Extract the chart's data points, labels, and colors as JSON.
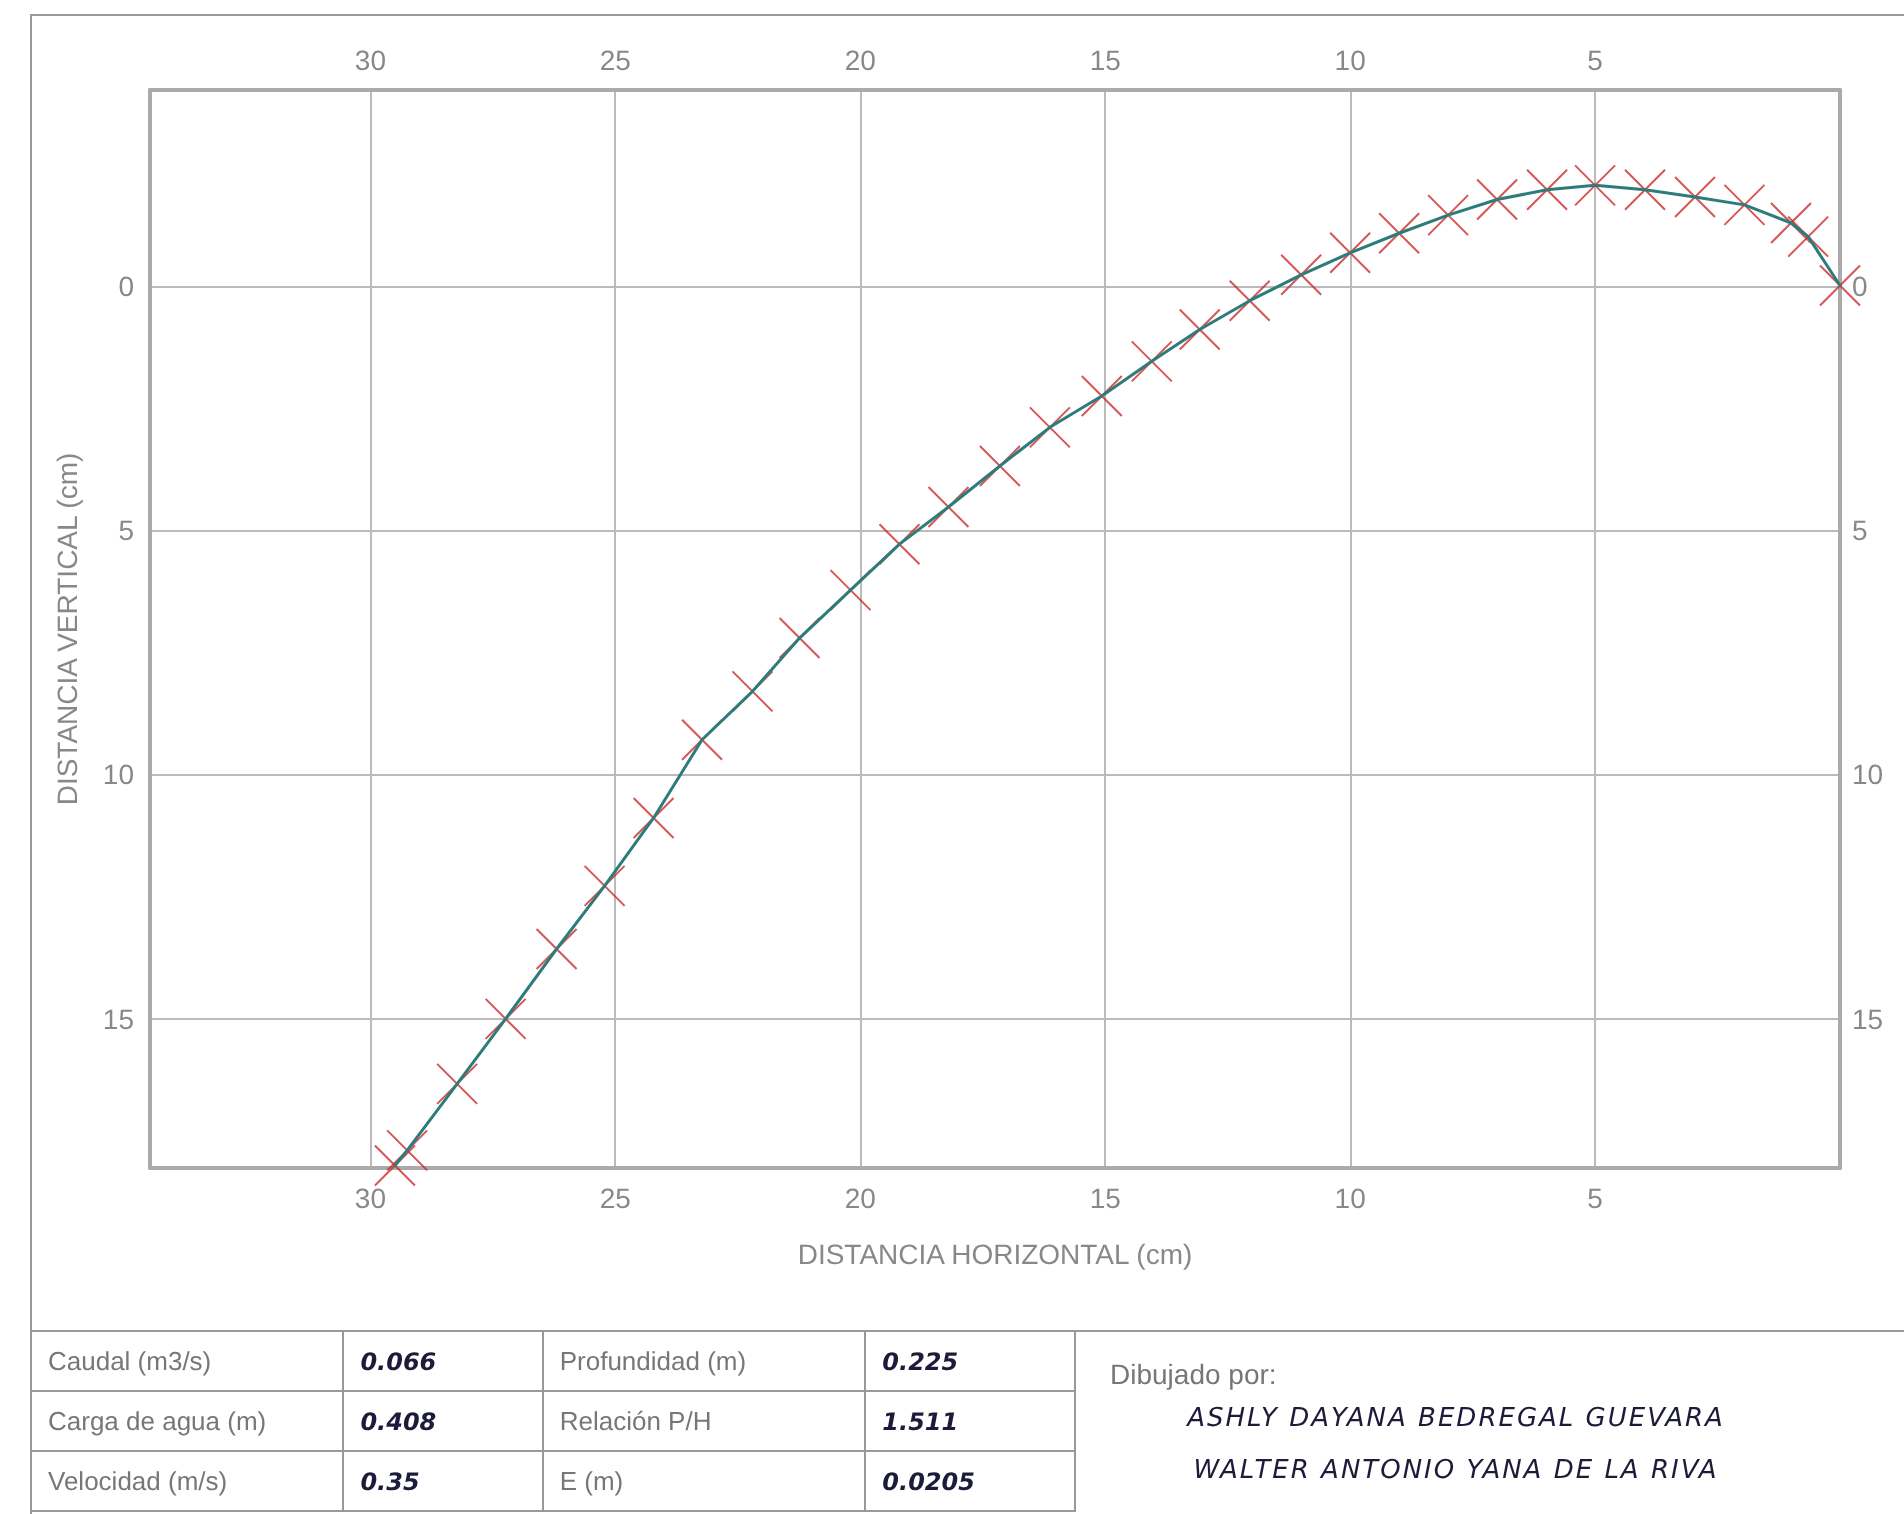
{
  "chart_data": [
    {
      "type": "line",
      "xlabel": "DISTANCIA HORIZONTAL (cm)",
      "ylabel": "DISTANCIA VERTICAL (cm)",
      "xlim": [
        34.5,
        0
      ],
      "xticks": [
        30,
        25,
        20,
        15,
        10,
        5
      ],
      "x2lim": [
        34.5,
        0
      ],
      "x2ticks": [
        30,
        25,
        20,
        15,
        10,
        5
      ],
      "ylim": [
        18.05,
        -4
      ],
      "yticks": [
        0,
        5,
        10,
        15
      ],
      "y2lim": [
        18.05,
        -4
      ],
      "y2ticks": [
        0,
        5,
        10,
        15
      ],
      "grid": true,
      "series": [
        {
          "type": "line",
          "color": "#2e7b7b",
          "marker": "none",
          "x": [
            0,
            0.65,
            1.0,
            1.95,
            2.96,
            3.98,
            5.0,
            5.98,
            7.0,
            8.0,
            9.0,
            10.0,
            11.0,
            12.05,
            13.07,
            14.05,
            15.07,
            16.13,
            17.15,
            18.2,
            19.2,
            20.2,
            21.24,
            22.2,
            23.23,
            24.22,
            25.22,
            26.2,
            27.24,
            28.23,
            29.25,
            29.5
          ],
          "values": [
            0,
            -1.0,
            -1.28,
            -1.65,
            -1.81,
            -1.96,
            -2.05,
            -1.96,
            -1.76,
            -1.44,
            -1.07,
            -0.67,
            -0.22,
            0.31,
            0.9,
            1.55,
            2.26,
            2.9,
            3.69,
            4.53,
            5.29,
            6.23,
            7.21,
            8.3,
            9.29,
            10.89,
            12.28,
            13.57,
            15.0,
            16.33,
            17.69,
            18.0
          ]
        },
        {
          "type": "scatter",
          "color": "#cc2b2b",
          "marker": "cross",
          "x": [
            0,
            0.65,
            1.0,
            1.95,
            2.96,
            3.98,
            5.0,
            5.98,
            7.0,
            8.0,
            9.0,
            10.0,
            11.0,
            12.05,
            13.07,
            14.05,
            15.07,
            16.13,
            17.15,
            18.2,
            19.2,
            20.2,
            21.24,
            22.2,
            23.23,
            24.22,
            25.22,
            26.2,
            27.24,
            28.23,
            29.25,
            29.5
          ],
          "values": [
            0,
            -1.0,
            -1.28,
            -1.65,
            -1.81,
            -1.96,
            -2.05,
            -1.96,
            -1.76,
            -1.44,
            -1.07,
            -0.67,
            -0.22,
            0.31,
            0.9,
            1.55,
            2.26,
            2.9,
            3.69,
            4.53,
            5.29,
            6.23,
            7.21,
            8.3,
            9.29,
            10.89,
            12.28,
            13.57,
            15.0,
            16.33,
            17.69,
            18.0
          ]
        }
      ]
    },
    {
      "type": "other",
      "annotations": [
        "Caudal (m3/s)",
        "0.066",
        "Profundidad (m)",
        "0.225",
        "Carga de agua (m)",
        "0.408",
        "Relación P/H",
        "1.511",
        "Velocidad (m/s)",
        "0.35",
        "E (m)",
        "0.0205",
        "Dibujado por:",
        "ASHLY DAYANA BEDREGAL GUEVARA",
        "WALTER ANTONIO YANA DE LA RIVA"
      ]
    }
  ]
}
